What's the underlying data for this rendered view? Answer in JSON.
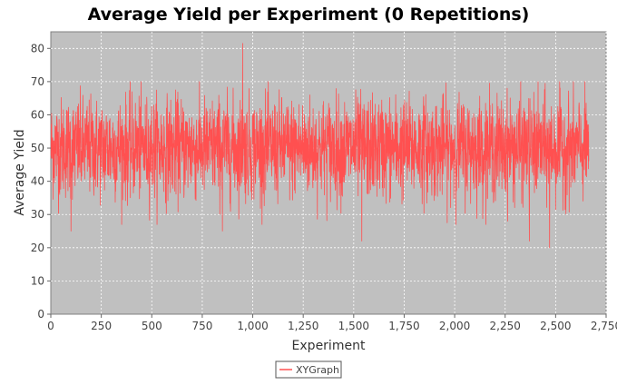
{
  "chart_data": {
    "type": "line",
    "title": "Average Yield per Experiment (0 Repetitions)",
    "xlabel": "Experiment",
    "ylabel": "Average Yield",
    "xlim": [
      0,
      2750
    ],
    "ylim": [
      0,
      85
    ],
    "x_ticks": [
      0,
      250,
      500,
      750,
      1000,
      1250,
      1500,
      1750,
      2000,
      2250,
      2500,
      2750
    ],
    "x_tick_labels": [
      "0",
      "250",
      "500",
      "750",
      "1,000",
      "1,250",
      "1,500",
      "1,750",
      "2,000",
      "2,250",
      "2,500",
      "2,750"
    ],
    "y_ticks": [
      0,
      10,
      20,
      30,
      40,
      50,
      60,
      70,
      80
    ],
    "y_tick_labels": [
      "0",
      "10",
      "20",
      "30",
      "40",
      "50",
      "60",
      "70",
      "80"
    ],
    "grid": true,
    "legend_position": "bottom-center",
    "plot_background": "#c0c0c0",
    "series": [
      {
        "name": "XYGraph",
        "color": "#ff5050",
        "points": 2664,
        "x_range": [
          1,
          2664
        ],
        "mean": 50,
        "typical_range": [
          35,
          65
        ],
        "notable_points": [
          {
            "x": 950,
            "y": 81.5
          },
          {
            "x": 850,
            "y": 73
          },
          {
            "x": 2470,
            "y": 20
          },
          {
            "x": 2370,
            "y": 22
          },
          {
            "x": 1540,
            "y": 22
          },
          {
            "x": 100,
            "y": 25
          },
          {
            "x": 850,
            "y": 25
          }
        ]
      }
    ]
  }
}
